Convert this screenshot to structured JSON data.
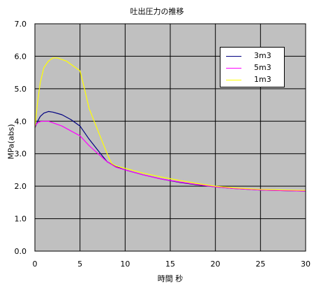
{
  "colors": {
    "plot_bg": "#c0c0c0",
    "grid": "#000000",
    "series_3m3": "#000080",
    "series_5m3": "#ff00ff",
    "series_1m3": "#ffff00"
  },
  "chart_data": {
    "type": "line",
    "title": "吐出圧力の推移",
    "xlabel": "時間 秒",
    "ylabel": "MPa(abs)",
    "xlim": [
      0,
      30
    ],
    "ylim": [
      0.0,
      7.0
    ],
    "x_ticks": [
      "0",
      "5",
      "10",
      "15",
      "20",
      "25",
      "30"
    ],
    "y_ticks": [
      "0.0",
      "1.0",
      "2.0",
      "3.0",
      "4.0",
      "5.0",
      "6.0",
      "7.0"
    ],
    "grid": true,
    "legend_position": "top-right",
    "series": [
      {
        "name": "3m3",
        "color": "#000080",
        "x": [
          0,
          0.3,
          0.6,
          1,
          1.5,
          2,
          3,
          4,
          5,
          6,
          7,
          8,
          9,
          10,
          12,
          14,
          16,
          18,
          20,
          22,
          25,
          28,
          30
        ],
        "y": [
          3.8,
          4.0,
          4.15,
          4.25,
          4.3,
          4.28,
          4.2,
          4.05,
          3.85,
          3.45,
          3.1,
          2.75,
          2.6,
          2.5,
          2.35,
          2.22,
          2.12,
          2.04,
          1.98,
          1.93,
          1.88,
          1.86,
          1.85
        ]
      },
      {
        "name": "5m3",
        "color": "#ff00ff",
        "x": [
          0,
          0.3,
          0.6,
          1,
          1.5,
          2,
          3,
          4,
          5,
          6,
          7,
          8,
          9,
          10,
          12,
          14,
          16,
          18,
          20,
          22,
          25,
          28,
          30
        ],
        "y": [
          3.85,
          3.95,
          3.99,
          4.0,
          4.0,
          3.95,
          3.85,
          3.7,
          3.55,
          3.25,
          3.0,
          2.75,
          2.58,
          2.5,
          2.35,
          2.22,
          2.13,
          2.05,
          1.98,
          1.93,
          1.88,
          1.86,
          1.85
        ]
      },
      {
        "name": "1m3",
        "color": "#ffff00",
        "x": [
          0,
          0.3,
          0.6,
          1,
          1.5,
          2,
          2.5,
          3,
          3.5,
          4,
          5,
          5.5,
          6,
          7,
          8,
          8.5,
          9,
          10,
          12,
          14,
          16,
          18,
          20,
          22,
          25,
          28,
          30
        ],
        "y": [
          3.8,
          4.6,
          5.2,
          5.65,
          5.85,
          5.95,
          5.95,
          5.9,
          5.85,
          5.75,
          5.55,
          5.0,
          4.4,
          3.7,
          3.0,
          2.7,
          2.62,
          2.55,
          2.4,
          2.28,
          2.18,
          2.08,
          2.0,
          1.95,
          1.9,
          1.88,
          1.87
        ]
      }
    ]
  }
}
